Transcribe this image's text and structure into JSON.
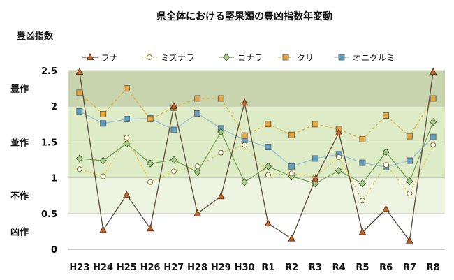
{
  "chart_data": {
    "type": "line",
    "title": "県全体における堅果類の豊凶指数年変動",
    "ylabel": "豊凶指数",
    "ylim": [
      0,
      2.5
    ],
    "yticks": [
      "0",
      "0.5",
      "1",
      "1.5",
      "2",
      "2.5"
    ],
    "categories": [
      "H23",
      "H24",
      "H25",
      "H26",
      "H27",
      "H28",
      "H29",
      "H30",
      "R1",
      "R2",
      "R3",
      "R4",
      "R5",
      "R6",
      "R7",
      "R8"
    ],
    "bands": [
      {
        "label": "豊作",
        "from": 2.0,
        "to": 2.5,
        "color": "#c7d4ad"
      },
      {
        "label": "並作",
        "from": 1.0,
        "to": 2.0,
        "color": "#deebc7"
      },
      {
        "label": "不作",
        "from": 0.5,
        "to": 1.0,
        "color": "#edf4e2"
      },
      {
        "label": "凶作",
        "from": 0.0,
        "to": 0.5,
        "color": "#ffffff"
      }
    ],
    "legend_position": "top",
    "series": [
      {
        "name": "ブナ",
        "color": "#5a4a3a",
        "dash": "solid",
        "marker": "triangle",
        "fill": "#c0662f",
        "values": [
          2.48,
          0.27,
          0.76,
          0.29,
          2.0,
          0.5,
          0.74,
          2.05,
          0.36,
          0.15,
          0.98,
          1.63,
          0.24,
          0.56,
          0.12,
          2.48
        ]
      },
      {
        "name": "ミズナラ",
        "color": "#e2c64a",
        "dash": "2,2",
        "marker": "circle",
        "fill": "#ffffff",
        "values": [
          1.12,
          1.02,
          1.56,
          0.94,
          1.09,
          1.16,
          1.35,
          1.46,
          1.04,
          1.06,
          1.01,
          1.29,
          0.68,
          1.18,
          0.78,
          1.46
        ]
      },
      {
        "name": "コナラ",
        "color": "#7aa05a",
        "dash": "solid",
        "marker": "diamond",
        "fill": "#a9c98a",
        "values": [
          1.27,
          1.24,
          1.48,
          1.2,
          1.25,
          1.08,
          1.64,
          0.94,
          1.16,
          1.02,
          0.92,
          1.1,
          0.92,
          1.36,
          0.95,
          1.78
        ]
      },
      {
        "name": "クリ",
        "color": "#e6b23a",
        "dash": "4,3",
        "marker": "square",
        "fill": "#e8a83a",
        "values": [
          2.19,
          1.89,
          2.25,
          1.82,
          1.98,
          2.11,
          2.11,
          1.59,
          1.75,
          1.6,
          1.75,
          1.68,
          1.54,
          1.87,
          1.58,
          2.11
        ]
      },
      {
        "name": "オニグルミ",
        "color": "#9ec3d6",
        "dash": "solid",
        "marker": "square",
        "fill": "#5d9fc2",
        "values": [
          1.93,
          1.76,
          1.82,
          1.83,
          1.67,
          1.9,
          1.69,
          1.53,
          1.43,
          1.16,
          1.27,
          1.33,
          1.21,
          1.15,
          1.24,
          1.57
        ]
      }
    ]
  }
}
